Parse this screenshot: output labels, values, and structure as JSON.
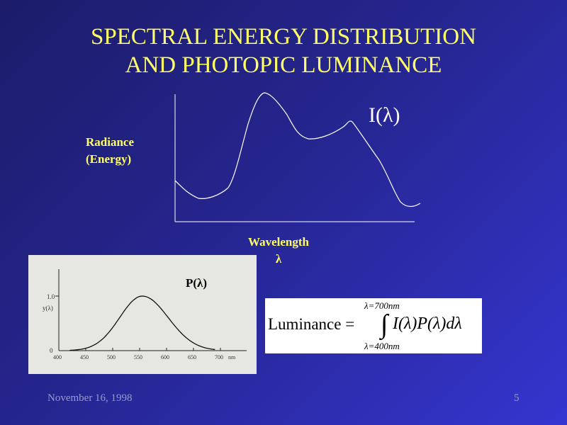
{
  "slide": {
    "title_line1": "SPECTRAL ENERGY DISTRIBUTION",
    "title_line2": "AND PHOTOPIC LUMINANCE",
    "y_label_line1": "Radiance",
    "y_label_line2": "(Energy)",
    "x_label_line1": "Wavelength",
    "x_label_line2": "λ",
    "curve_label": "I(λ)",
    "footer_date": "November 16, 1998",
    "page_number": "5",
    "title_color": "#ffff66"
  },
  "photopic_chart": {
    "label": "P(λ)",
    "y_axis_label": "y(λ)",
    "y_ticks": [
      "0",
      "1.0"
    ],
    "x_ticks": [
      "400",
      "450",
      "500",
      "550",
      "600",
      "650",
      "700"
    ],
    "x_unit": "nm",
    "peak_wavelength": 555
  },
  "formula": {
    "lhs": "Luminance =",
    "upper_limit": "λ=700nm",
    "lower_limit": "λ=400nm",
    "integrand": "I(λ)P(λ)dλ"
  }
}
